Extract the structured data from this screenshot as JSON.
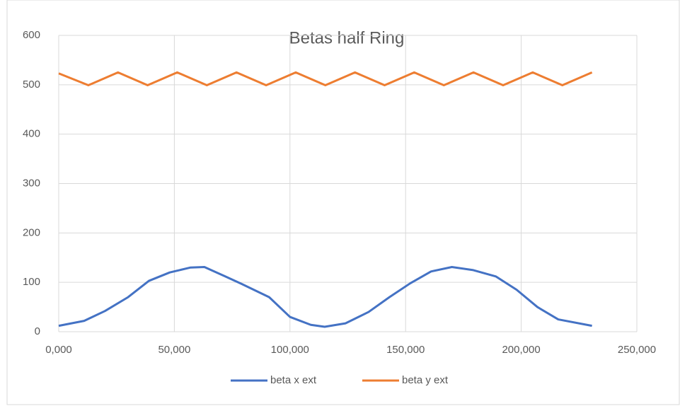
{
  "chart_data": {
    "type": "line",
    "title": "Betas half Ring",
    "series": [
      {
        "name": "beta x ext",
        "color": "#4472c4",
        "x": [
          0,
          11000,
          20000,
          30000,
          39000,
          48000,
          57000,
          63000,
          72000,
          79000,
          91000,
          100000,
          109000,
          115000,
          124000,
          134000,
          143000,
          152000,
          161000,
          170000,
          179000,
          189000,
          198000,
          207000,
          216000,
          230600
        ],
        "values": [
          12,
          22,
          42,
          70,
          103,
          120,
          130,
          131,
          112,
          97,
          70,
          30,
          14,
          10,
          17,
          40,
          70,
          98,
          122,
          131,
          125,
          112,
          85,
          50,
          25,
          12
        ]
      },
      {
        "name": "beta y ext",
        "color": "#ed7d31",
        "x": [
          0,
          12811,
          25622,
          38433,
          51244,
          64055,
          76866,
          89677,
          102488,
          115300,
          128111,
          140922,
          153733,
          166544,
          179355,
          192166,
          204977,
          217788,
          230600
        ],
        "values": [
          523,
          499,
          525,
          499,
          525,
          499,
          525,
          499,
          525,
          499,
          525,
          499,
          525,
          499,
          525,
          499,
          525,
          499,
          525
        ]
      }
    ],
    "xlim": [
      0,
      250000
    ],
    "xticks": [
      {
        "value": 0,
        "label": "0,000"
      },
      {
        "value": 50000,
        "label": "50,000"
      },
      {
        "value": 100000,
        "label": "100,000"
      },
      {
        "value": 150000,
        "label": "150,000"
      },
      {
        "value": 200000,
        "label": "200,000"
      },
      {
        "value": 250000,
        "label": "250,000"
      }
    ],
    "ylim": [
      0,
      600
    ],
    "yticks": [
      0,
      100,
      200,
      300,
      400,
      500,
      600
    ],
    "grid": true
  }
}
